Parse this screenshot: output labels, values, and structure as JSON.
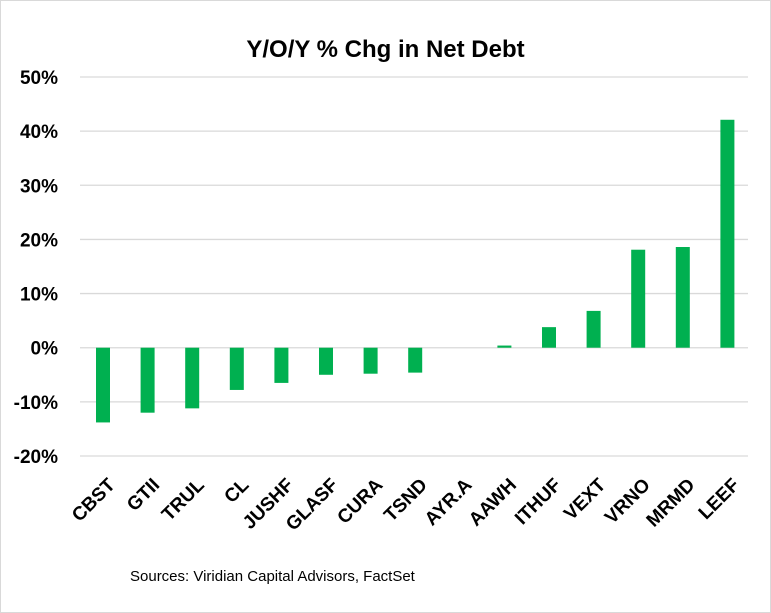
{
  "chart_data": {
    "type": "bar",
    "title": "Y/O/Y % Chg in Net Debt",
    "categories": [
      "CBST",
      "GTII",
      "TRUL",
      "CL",
      "JUSHF",
      "GLASF",
      "CURA",
      "TSND",
      "AYR.A",
      "AAWH",
      "ITHUF",
      "VEXT",
      "VRNO",
      "MRMD",
      "LEEF"
    ],
    "values": [
      -13.8,
      -12.0,
      -11.2,
      -7.8,
      -6.5,
      -5.0,
      -4.8,
      -4.6,
      0,
      0.4,
      3.8,
      6.8,
      18.1,
      18.6,
      42.1
    ],
    "ylim": [
      -20,
      50
    ],
    "yticks": [
      -20,
      -10,
      0,
      10,
      20,
      30,
      40,
      50
    ],
    "ytick_labels": [
      "-20%",
      "-10%",
      "0%",
      "10%",
      "20%",
      "30%",
      "40%",
      "50%"
    ],
    "xlabel": "",
    "ylabel": "",
    "grid": true,
    "bar_color": "#00b050",
    "grid_color": "#d9d9d9"
  },
  "source_note": "Sources: Viridian Capital Advisors, FactSet"
}
